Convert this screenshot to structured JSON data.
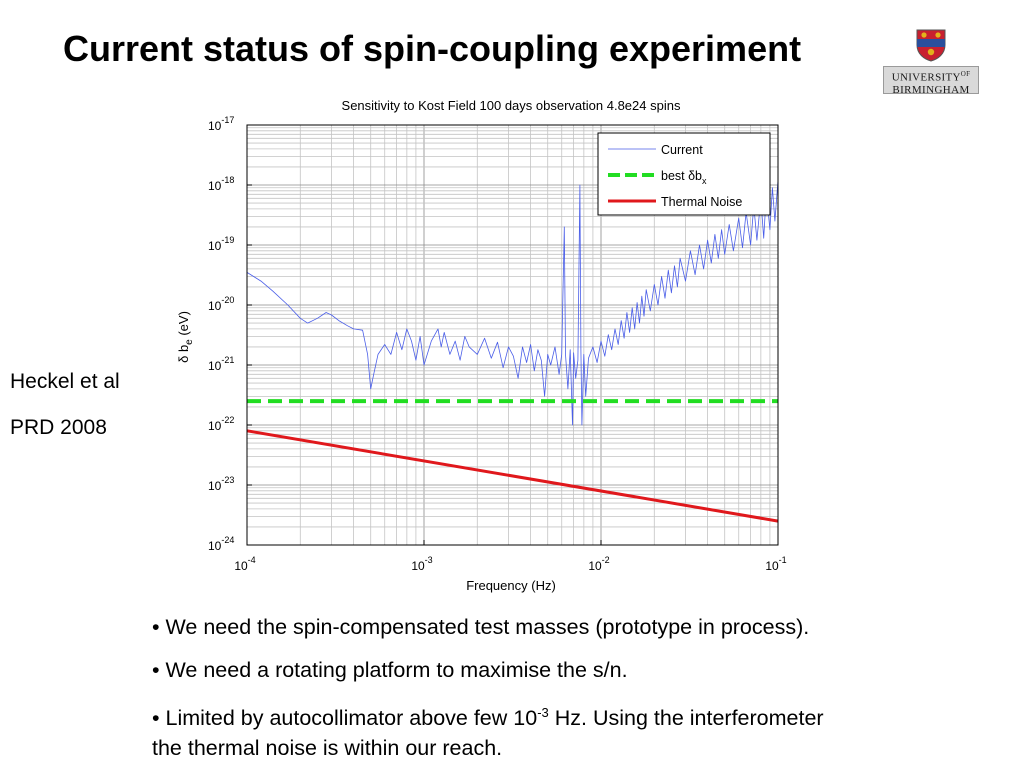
{
  "slide": {
    "title": "Current status of spin-coupling experiment",
    "logo": {
      "line1": "UNIVERSITY",
      "line1_suffix": "OF",
      "line2": "BIRMINGHAM",
      "crest_colors": [
        "#c8202f",
        "#2a4f9c",
        "#e3b21b"
      ]
    },
    "citation": {
      "authors": "Heckel et al",
      "journal": "PRD 2008"
    },
    "bullets": [
      {
        "text": "• We need the spin-compensated test masses (prototype in process)."
      },
      {
        "text": "• We need a rotating platform to maximise the s/n."
      },
      {
        "pre": "•  Limited by autocollimator above few 10",
        "sup": "-3",
        "post": " Hz. Using the interferometer the thermal noise is within our reach."
      }
    ]
  },
  "chart_data": {
    "type": "line",
    "title": "Sensitivity to Kost Field 100 days observation 4.8e24 spins",
    "xlabel": "Frequency (Hz)",
    "ylabel": {
      "pre": "δ b",
      "sub": "e",
      "post": " (eV)"
    },
    "xscale": "log",
    "yscale": "log",
    "xlim": [
      0.0001,
      0.1
    ],
    "ylim": [
      1e-24,
      1e-17
    ],
    "grid": true,
    "legend_placement": "top-right",
    "xticks": [
      {
        "base": "10",
        "exp": "-4",
        "value": 0.0001
      },
      {
        "base": "10",
        "exp": "-3",
        "value": 0.001
      },
      {
        "base": "10",
        "exp": "-2",
        "value": 0.01
      },
      {
        "base": "10",
        "exp": "-1",
        "value": 0.1
      }
    ],
    "yticks": [
      {
        "base": "10",
        "exp": "-17",
        "value": 1e-17
      },
      {
        "base": "10",
        "exp": "-18",
        "value": 1e-18
      },
      {
        "base": "10",
        "exp": "-19",
        "value": 1e-19
      },
      {
        "base": "10",
        "exp": "-20",
        "value": 1e-20
      },
      {
        "base": "10",
        "exp": "-21",
        "value": 1e-21
      },
      {
        "base": "10",
        "exp": "-22",
        "value": 1e-22
      },
      {
        "base": "10",
        "exp": "-23",
        "value": 1e-23
      },
      {
        "base": "10",
        "exp": "-24",
        "value": 1e-24
      }
    ],
    "series": [
      {
        "name": "Current",
        "color": "#4a5ee8",
        "style": "solid-thin",
        "points": [
          [
            0.0001,
            3.5e-20
          ],
          [
            0.00012,
            2.5e-20
          ],
          [
            0.00014,
            1.7e-20
          ],
          [
            0.00017,
            1e-20
          ],
          [
            0.0002,
            6e-21
          ],
          [
            0.00022,
            5e-21
          ],
          [
            0.00025,
            6e-21
          ],
          [
            0.00028,
            7.5e-21
          ],
          [
            0.0003,
            6.8e-21
          ],
          [
            0.00033,
            5.5e-21
          ],
          [
            0.00037,
            4.5e-21
          ],
          [
            0.0004,
            4e-21
          ],
          [
            0.00045,
            3.8e-21
          ],
          [
            0.00048,
            1.5e-21
          ],
          [
            0.0005,
            4e-22
          ],
          [
            0.00052,
            7e-22
          ],
          [
            0.00055,
            1.5e-21
          ],
          [
            0.0006,
            2.2e-21
          ],
          [
            0.00065,
            1.5e-21
          ],
          [
            0.0007,
            3.5e-21
          ],
          [
            0.00075,
            1.8e-21
          ],
          [
            0.0008,
            4e-21
          ],
          [
            0.00085,
            2.5e-21
          ],
          [
            0.0009,
            1.2e-21
          ],
          [
            0.00095,
            3e-21
          ],
          [
            0.001,
            1e-21
          ],
          [
            0.0011,
            2.5e-21
          ],
          [
            0.0012,
            4e-21
          ],
          [
            0.00125,
            2e-21
          ],
          [
            0.0013,
            3.5e-21
          ],
          [
            0.0014,
            1.5e-21
          ],
          [
            0.0015,
            2.5e-21
          ],
          [
            0.0016,
            1.2e-21
          ],
          [
            0.0017,
            3e-21
          ],
          [
            0.0018,
            2e-21
          ],
          [
            0.002,
            1.5e-21
          ],
          [
            0.0022,
            2.8e-21
          ],
          [
            0.0024,
            1.3e-21
          ],
          [
            0.0026,
            2.4e-21
          ],
          [
            0.0028,
            9e-22
          ],
          [
            0.003,
            2e-21
          ],
          [
            0.0032,
            1.4e-21
          ],
          [
            0.0034,
            6e-22
          ],
          [
            0.0036,
            2e-21
          ],
          [
            0.0038,
            1.1e-21
          ],
          [
            0.004,
            2.2e-21
          ],
          [
            0.0042,
            8e-22
          ],
          [
            0.0044,
            1.8e-21
          ],
          [
            0.0046,
            1.2e-21
          ],
          [
            0.0048,
            3e-22
          ],
          [
            0.005,
            1.5e-21
          ],
          [
            0.0052,
            1e-21
          ],
          [
            0.0055,
            2e-21
          ],
          [
            0.0058,
            7e-22
          ],
          [
            0.006,
            1.5e-21
          ],
          [
            0.0062,
            2e-19
          ],
          [
            0.0063,
            1.5e-21
          ],
          [
            0.0065,
            4e-22
          ],
          [
            0.0067,
            1.8e-21
          ],
          [
            0.0069,
            1e-22
          ],
          [
            0.007,
            1.6e-21
          ],
          [
            0.0072,
            6e-22
          ],
          [
            0.0074,
            1.2e-21
          ],
          [
            0.0076,
            1e-18
          ],
          [
            0.0077,
            1.8e-21
          ],
          [
            0.0078,
            1e-22
          ],
          [
            0.008,
            1.5e-21
          ],
          [
            0.0082,
            3e-22
          ],
          [
            0.0085,
            1.3e-21
          ],
          [
            0.009,
            2e-21
          ],
          [
            0.0095,
            1.1e-21
          ],
          [
            0.01,
            2.5e-21
          ],
          [
            0.0105,
            1.4e-21
          ],
          [
            0.011,
            3.2e-21
          ],
          [
            0.0115,
            1.8e-21
          ],
          [
            0.012,
            4e-21
          ],
          [
            0.0125,
            2.2e-21
          ],
          [
            0.013,
            5.5e-21
          ],
          [
            0.0135,
            2.8e-21
          ],
          [
            0.014,
            7.5e-21
          ],
          [
            0.0145,
            3.5e-21
          ],
          [
            0.015,
            9e-21
          ],
          [
            0.0155,
            4e-21
          ],
          [
            0.016,
            1.1e-20
          ],
          [
            0.0165,
            5e-21
          ],
          [
            0.017,
            1.4e-20
          ],
          [
            0.0175,
            6.5e-21
          ],
          [
            0.018,
            1.8e-20
          ],
          [
            0.019,
            8e-21
          ],
          [
            0.02,
            2.2e-20
          ],
          [
            0.021,
            1e-20
          ],
          [
            0.022,
            3e-20
          ],
          [
            0.023,
            1.3e-20
          ],
          [
            0.024,
            3.8e-20
          ],
          [
            0.025,
            1.6e-20
          ],
          [
            0.026,
            4.5e-20
          ],
          [
            0.027,
            2e-20
          ],
          [
            0.028,
            6e-20
          ],
          [
            0.03,
            2.5e-20
          ],
          [
            0.032,
            8e-20
          ],
          [
            0.034,
            3.2e-20
          ],
          [
            0.036,
            1e-19
          ],
          [
            0.038,
            4e-20
          ],
          [
            0.04,
            1.2e-19
          ],
          [
            0.042,
            5e-20
          ],
          [
            0.044,
            1.5e-19
          ],
          [
            0.046,
            6e-20
          ],
          [
            0.048,
            1.8e-19
          ],
          [
            0.05,
            7e-20
          ],
          [
            0.053,
            2.2e-19
          ],
          [
            0.056,
            8e-20
          ],
          [
            0.06,
            2.8e-19
          ],
          [
            0.063,
            9e-20
          ],
          [
            0.066,
            3.5e-19
          ],
          [
            0.07,
            1e-19
          ],
          [
            0.073,
            4.5e-19
          ],
          [
            0.076,
            1.2e-19
          ],
          [
            0.08,
            6e-19
          ],
          [
            0.083,
            1.3e-19
          ],
          [
            0.086,
            7.5e-19
          ],
          [
            0.09,
            1.8e-19
          ],
          [
            0.093,
            9e-19
          ],
          [
            0.096,
            2.5e-19
          ],
          [
            0.1,
            1.2e-18
          ]
        ]
      },
      {
        "name": "best δb",
        "name_sub": "x",
        "color": "#22dd22",
        "style": "dashed",
        "points": [
          [
            0.0001,
            2.5e-22
          ],
          [
            0.1,
            2.5e-22
          ]
        ]
      },
      {
        "name": "Thermal Noise",
        "color": "#e0181c",
        "style": "solid-thick",
        "points": [
          [
            0.0001,
            8e-23
          ],
          [
            0.1,
            2.5e-24
          ]
        ]
      }
    ]
  }
}
